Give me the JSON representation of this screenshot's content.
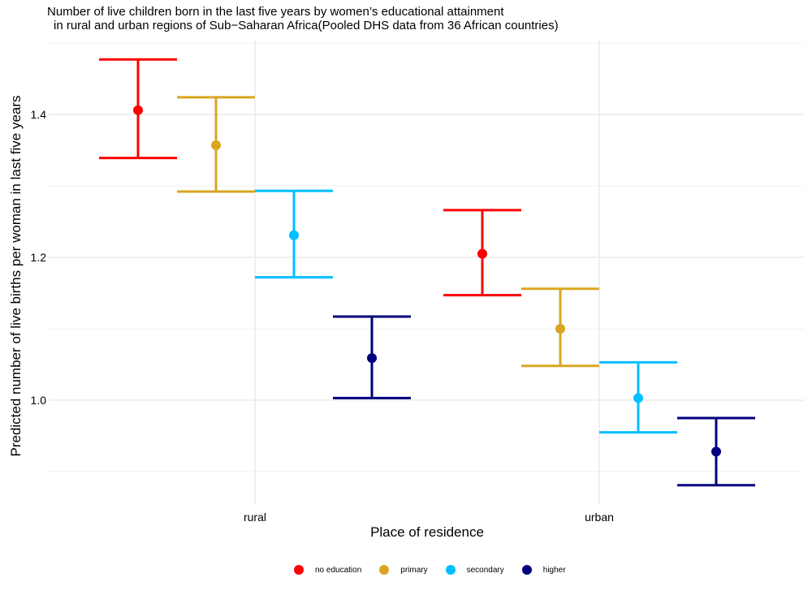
{
  "chart_data": {
    "type": "scatter",
    "title_line1": "Number of live children born in the last five years by women’s educational attainment",
    "title_line2": "in rural and urban regions of Sub−Saharan Africa(Pooled DHS data from 36 African countries)",
    "xlabel": "Place of residence",
    "ylabel": "Predicted number of live births per woman in last five years",
    "categories": [
      "rural",
      "urban"
    ],
    "ylim": [
      0.875,
      1.51
    ],
    "yticks": [
      1.0,
      1.2,
      1.4
    ],
    "ytick_labels": [
      "1.0",
      "1.2",
      "1.4"
    ],
    "grid": true,
    "legend_position": "bottom",
    "series": [
      {
        "name": "no education",
        "color": "#ff0000",
        "values": [
          1.406,
          1.205
        ],
        "lower": [
          1.339,
          1.147
        ],
        "upper": [
          1.477,
          1.266
        ]
      },
      {
        "name": "primary",
        "color": "#daa520",
        "values": [
          1.357,
          1.1
        ],
        "lower": [
          1.292,
          1.048
        ],
        "upper": [
          1.424,
          1.156
        ]
      },
      {
        "name": "secondary",
        "color": "#00bfff",
        "values": [
          1.231,
          1.003
        ],
        "lower": [
          1.172,
          0.955
        ],
        "upper": [
          1.293,
          1.053
        ]
      },
      {
        "name": "higher",
        "color": "#00007f",
        "values": [
          1.059,
          0.928
        ],
        "lower": [
          1.003,
          0.881
        ],
        "upper": [
          1.117,
          0.975
        ]
      }
    ]
  }
}
